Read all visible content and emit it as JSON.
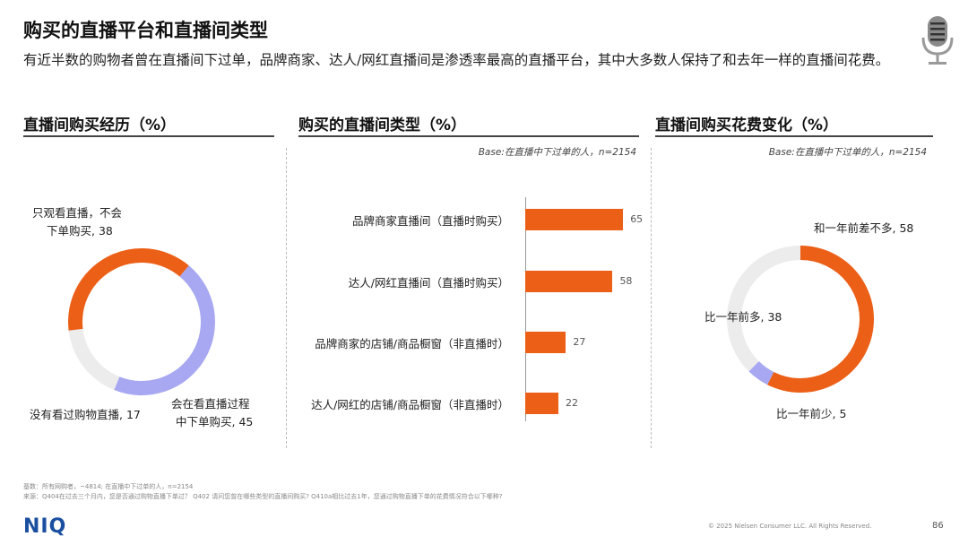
{
  "header": {
    "title": "购买的直播平台和直播间类型",
    "subtitle": "有近半数的购物者曾在直播间下过单，品牌商家、达人/网红直播间是渗透率最高的直播平台，其中大多数人保持了和去年一样的直播间花费。"
  },
  "colors": {
    "orange": "#ec5f17",
    "lavender": "#a7a8f1",
    "light_gray": "#ececec"
  },
  "chart_data": [
    {
      "type": "pie",
      "title": "直播间购买经历（%）",
      "slices": [
        {
          "label_line1": "会在看直播过程",
          "label_line2": "中下单购买, 45",
          "value": 45,
          "color": "#a7a8f1"
        },
        {
          "label_line1": "没有看过购物直播, 17",
          "label_line2": "",
          "value": 17,
          "color": "#ececec"
        },
        {
          "label_line1": "只观看直播，不会",
          "label_line2": "下单购买, 38",
          "value": 38,
          "color": "#ec5f17"
        }
      ]
    },
    {
      "type": "bar",
      "title": "购买的直播间类型（%）",
      "base": "Base:在直播中下过单的人，n=2154",
      "categories": [
        "品牌商家直播间（直播时购买）",
        "达人/网红直播间（直播时购买）",
        "品牌商家的店铺/商品橱窗（非直播时）",
        "达人/网红的店铺/商品橱窗（非直播时）"
      ],
      "values": [
        65,
        58,
        27,
        22
      ],
      "xlim": [
        0,
        100
      ]
    },
    {
      "type": "pie",
      "title": "直播间购买花费变化（%）",
      "base": "Base:在直播中下过单的人，n=2154",
      "slices": [
        {
          "label_line1": "和一年前差不多, 58",
          "label_line2": "",
          "value": 58,
          "color": "#ec5f17"
        },
        {
          "label_line1": "比一年前少, 5",
          "label_line2": "",
          "value": 5,
          "color": "#a7a8f1"
        },
        {
          "label_line1": "比一年前多, 38",
          "label_line2": "",
          "value": 38,
          "color": "#ececec"
        }
      ]
    }
  ],
  "footer": {
    "note1": "基数：所有网购者，~4814; 在直播中下过单的人，n=2154",
    "note2": "来源：Q404在过去三个月内，您是否通过购物直播下单过？ Q402 请问您曾在哪些类型的直播间购买? Q410a相比过去1年，您通过购物直播下单的花费情况符合以下哪种?",
    "logo": "NIQ",
    "copyright": "© 2025 Nielsen Consumer LLC. All Rights Reserved.",
    "page": "86"
  }
}
